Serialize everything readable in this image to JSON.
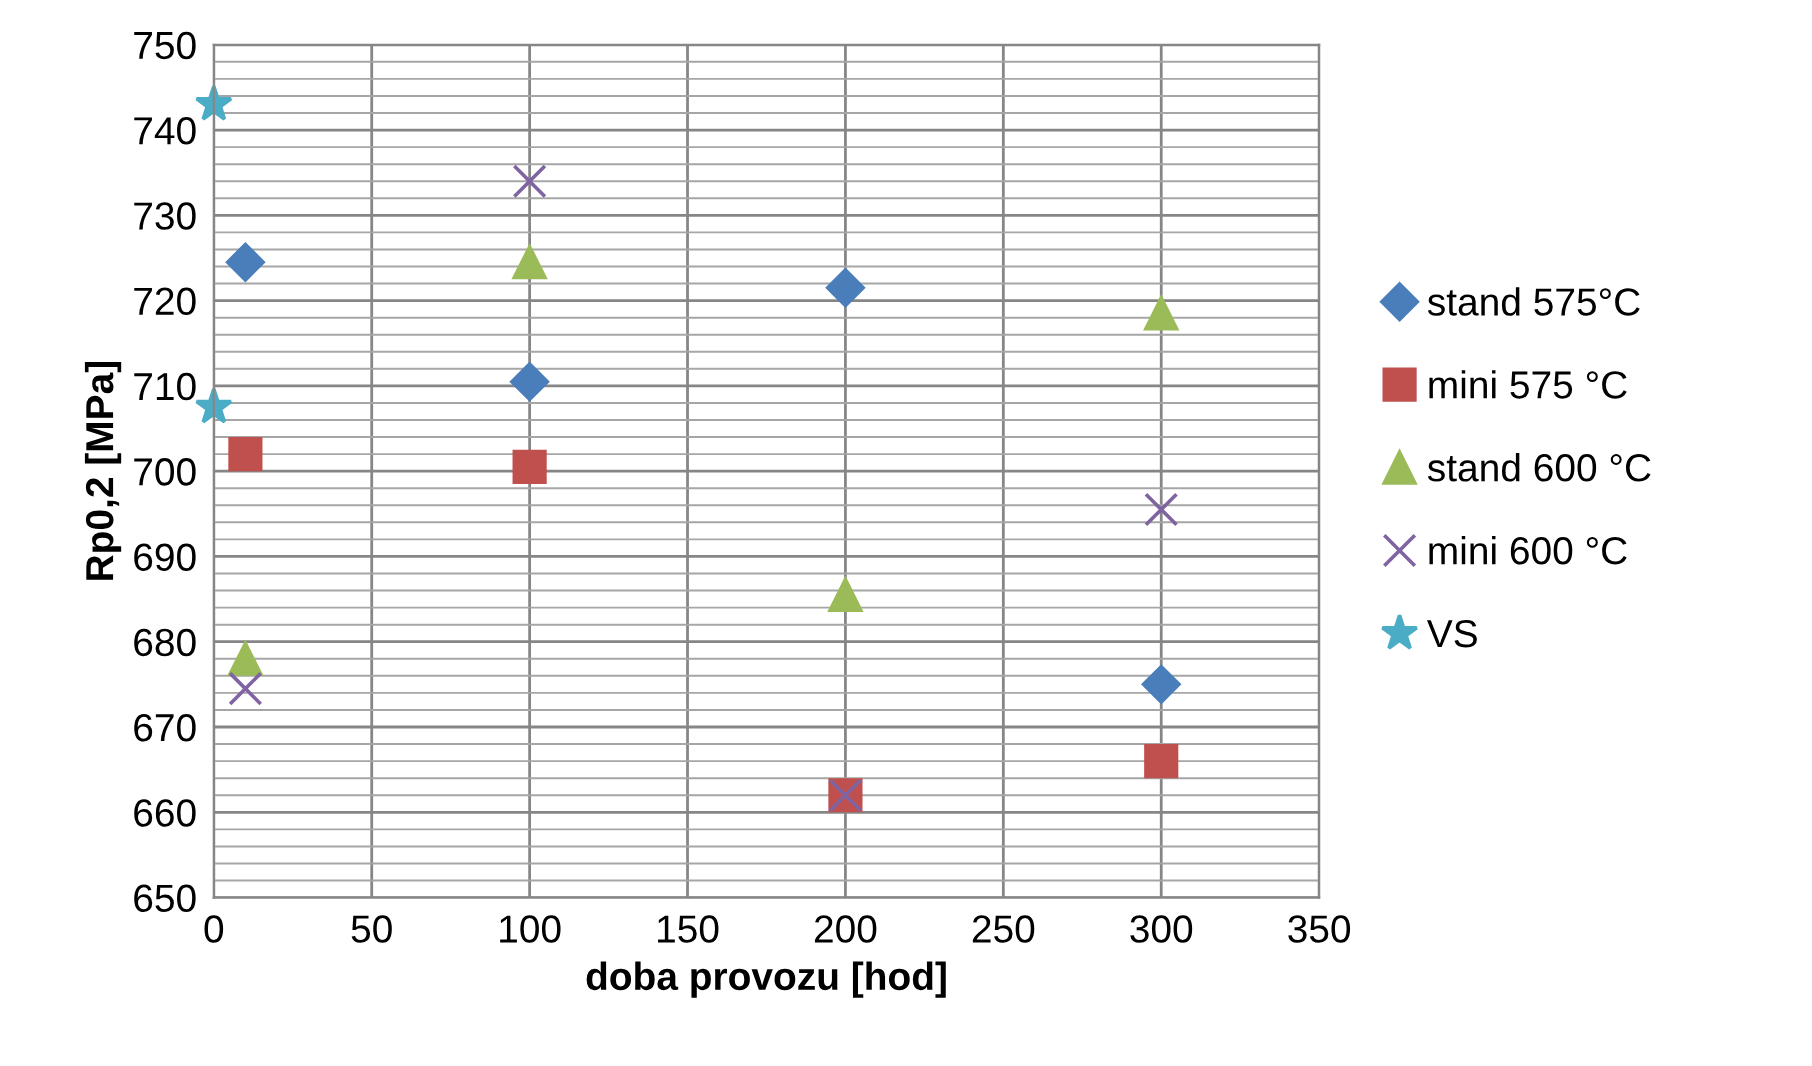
{
  "chart_data": {
    "type": "scatter",
    "xlabel": "doba provozu [hod]",
    "ylabel": "Rp0,2 [MPa]",
    "xlim": [
      0,
      350
    ],
    "xticks": [
      0,
      50,
      100,
      150,
      200,
      250,
      300,
      350
    ],
    "ylim": [
      650,
      750
    ],
    "yticks": [
      650,
      660,
      670,
      680,
      690,
      700,
      710,
      720,
      730,
      740,
      750
    ],
    "grid": true,
    "legend": "right",
    "series": [
      {
        "name": "stand 575°C",
        "color": "#4a7ebb",
        "marker": "diamond",
        "x": [
          10,
          100,
          200,
          300
        ],
        "values": [
          724.5,
          710.5,
          721.5,
          675
        ]
      },
      {
        "name": "mini 575 °C",
        "color": "#c0504d",
        "marker": "square",
        "x": [
          10,
          100,
          200,
          300
        ],
        "values": [
          702,
          700.5,
          662,
          666
        ]
      },
      {
        "name": "stand 600 °C",
        "color": "#9bbb59",
        "marker": "triangle",
        "x": [
          10,
          100,
          200,
          300
        ],
        "values": [
          678,
          724.5,
          685.5,
          718.5
        ]
      },
      {
        "name": "mini 600 °C",
        "color": "#8064a2",
        "marker": "cross",
        "x": [
          10,
          100,
          200,
          300
        ],
        "values": [
          674.5,
          734,
          662,
          695.5
        ]
      },
      {
        "name": "VS",
        "color": "#4bacc6",
        "marker": "star",
        "x": [
          0,
          0
        ],
        "values": [
          743,
          707.5
        ]
      }
    ]
  }
}
